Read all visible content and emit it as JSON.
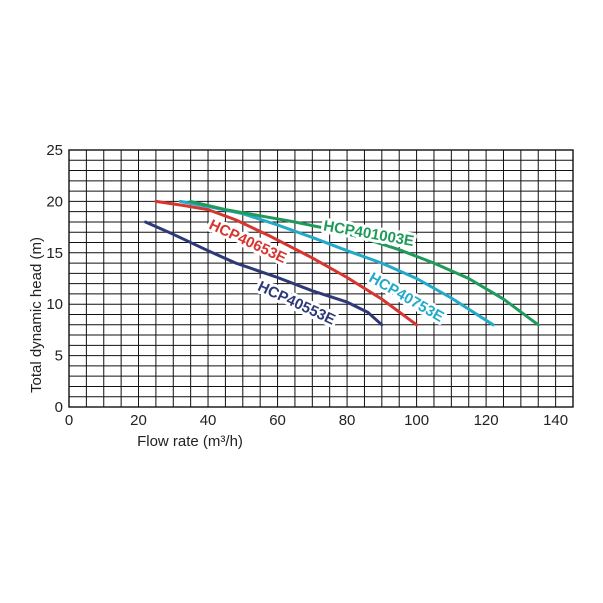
{
  "chart_data": {
    "type": "line",
    "title": "",
    "xlabel": "Flow rate (m³/h)",
    "ylabel": "Total dynamic head (m)",
    "xlim": [
      0,
      145
    ],
    "ylim": [
      0,
      25
    ],
    "xticks": [
      0,
      20,
      40,
      60,
      80,
      100,
      120,
      140
    ],
    "yticks": [
      0,
      5,
      10,
      15,
      20,
      25
    ],
    "grid": true,
    "legend": "none",
    "series": [
      {
        "name": "HCP40553E",
        "color": "#2e3a78",
        "points": [
          [
            22,
            18
          ],
          [
            30,
            16.8
          ],
          [
            40,
            15.2
          ],
          [
            48,
            14
          ],
          [
            60,
            12.6
          ],
          [
            70,
            11.3
          ],
          [
            80,
            10.2
          ],
          [
            86,
            9.2
          ],
          [
            90,
            8
          ]
        ]
      },
      {
        "name": "HCP40653E",
        "color": "#d6362f",
        "points": [
          [
            25,
            20
          ],
          [
            33,
            19.6
          ],
          [
            40,
            19.2
          ],
          [
            48,
            18.2
          ],
          [
            58,
            16.6
          ],
          [
            70,
            14.5
          ],
          [
            80,
            12.6
          ],
          [
            90,
            10.5
          ],
          [
            100,
            8
          ]
        ]
      },
      {
        "name": "HCP40753E",
        "color": "#22aac9",
        "points": [
          [
            32,
            20
          ],
          [
            40,
            19.5
          ],
          [
            50,
            18.8
          ],
          [
            60,
            17.7
          ],
          [
            70,
            16.5
          ],
          [
            80,
            15.2
          ],
          [
            90,
            14
          ],
          [
            100,
            12.5
          ],
          [
            110,
            10.6
          ],
          [
            122,
            8
          ]
        ]
      },
      {
        "name": "HCP401003E",
        "color": "#1f9a5b",
        "points": [
          [
            35,
            20
          ],
          [
            45,
            19.2
          ],
          [
            55,
            18.6
          ],
          [
            65,
            18
          ],
          [
            75,
            17.3
          ],
          [
            85,
            16.4
          ],
          [
            95,
            15.3
          ],
          [
            105,
            14
          ],
          [
            115,
            12.5
          ],
          [
            125,
            10.5
          ],
          [
            135,
            8
          ]
        ]
      }
    ],
    "series_labels": [
      {
        "text": "HCP401003E",
        "color": "#1f9a5b",
        "x": 73,
        "y": 17.2,
        "angle": 10
      },
      {
        "text": "HCP40653E",
        "color": "#d6362f",
        "x": 40,
        "y": 17.4,
        "angle": 25
      },
      {
        "text": "HCP40753E",
        "color": "#22aac9",
        "x": 86,
        "y": 12.3,
        "angle": 30
      },
      {
        "text": "HCP40553E",
        "color": "#2e3a78",
        "x": 54,
        "y": 11.4,
        "angle": 25
      }
    ]
  }
}
